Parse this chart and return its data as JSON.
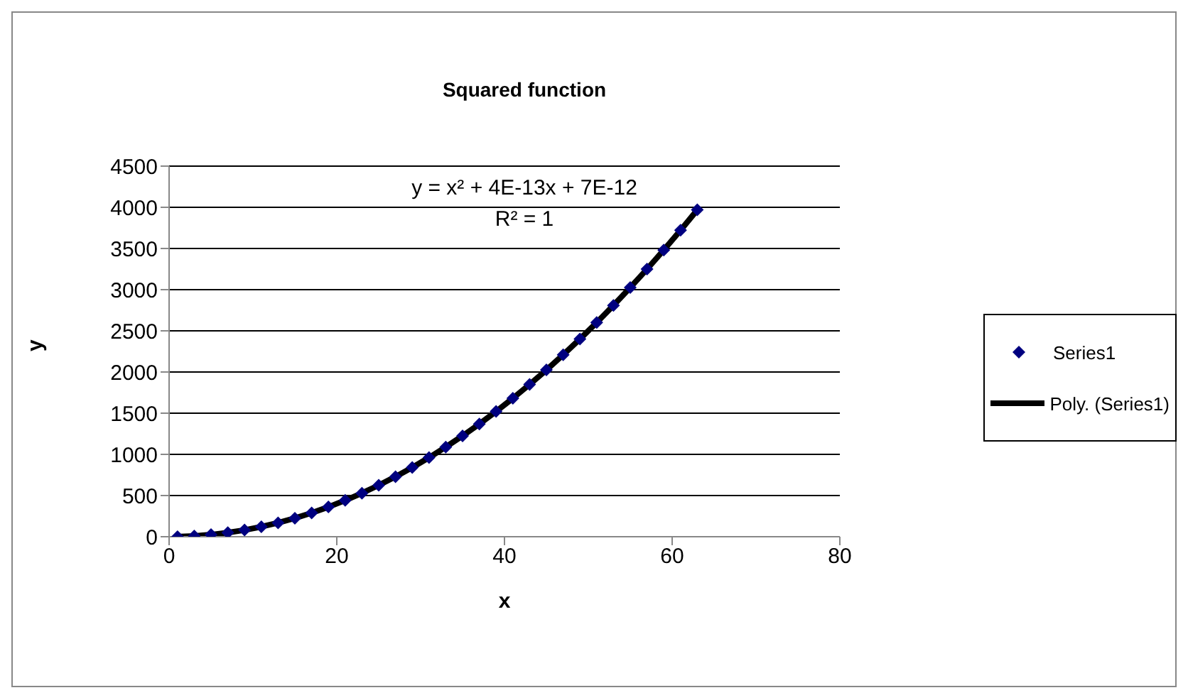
{
  "chart_data": {
    "type": "scatter",
    "title": "Squared function",
    "xlabel": "x",
    "ylabel": "y",
    "x": [
      1,
      3,
      5,
      7,
      9,
      11,
      13,
      15,
      17,
      19,
      21,
      23,
      25,
      27,
      29,
      31,
      33,
      35,
      37,
      39,
      41,
      43,
      45,
      47,
      49,
      51,
      53,
      55,
      57,
      59,
      61,
      63
    ],
    "series": [
      {
        "name": "Series1",
        "marker": "diamond",
        "color": "#000080",
        "values": [
          1,
          9,
          25,
          49,
          81,
          121,
          169,
          225,
          289,
          361,
          441,
          529,
          625,
          729,
          841,
          961,
          1089,
          1225,
          1369,
          1521,
          1681,
          1849,
          2025,
          2209,
          2401,
          2601,
          2809,
          3025,
          3249,
          3481,
          3721,
          3969
        ]
      },
      {
        "name": "Poly. (Series1)",
        "type": "line",
        "color": "#000000",
        "values": [
          1,
          9,
          25,
          49,
          81,
          121,
          169,
          225,
          289,
          361,
          441,
          529,
          625,
          729,
          841,
          961,
          1089,
          1225,
          1369,
          1521,
          1681,
          1849,
          2025,
          2209,
          2401,
          2601,
          2809,
          3025,
          3249,
          3481,
          3721,
          3969
        ]
      }
    ],
    "annotations": [
      "y = x² + 4E-13x + 7E-12",
      "R² = 1"
    ],
    "xlim": [
      0,
      80
    ],
    "xticks": [
      0,
      20,
      40,
      60,
      80
    ],
    "ylim": [
      0,
      4500
    ],
    "yticks": [
      0,
      500,
      1000,
      1500,
      2000,
      2500,
      3000,
      3500,
      4000,
      4500
    ],
    "grid": "y",
    "legend": "right"
  }
}
